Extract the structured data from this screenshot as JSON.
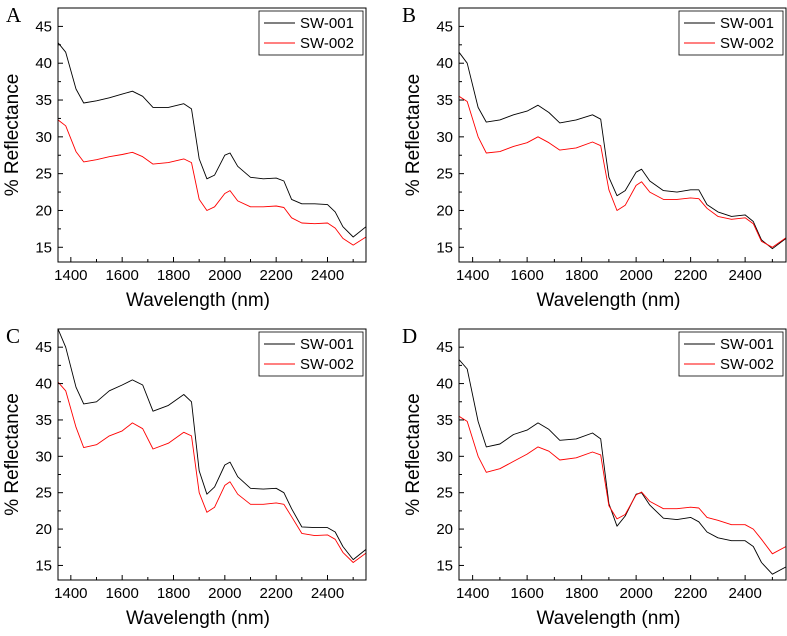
{
  "chart_data": [
    {
      "type": "line",
      "panel": "A",
      "xlabel": "Wavelength (nm)",
      "ylabel": "% Reflectance",
      "xlim": [
        1350,
        2550
      ],
      "ylim": [
        13,
        47.5
      ],
      "xticks": [
        1400,
        1600,
        1800,
        2000,
        2200,
        2400
      ],
      "yticks": [
        15,
        20,
        25,
        30,
        35,
        40,
        45
      ],
      "legend_position": "top-right",
      "x": [
        1350,
        1380,
        1420,
        1450,
        1500,
        1550,
        1600,
        1640,
        1680,
        1720,
        1780,
        1840,
        1870,
        1900,
        1930,
        1960,
        2000,
        2020,
        2050,
        2100,
        2150,
        2200,
        2230,
        2260,
        2300,
        2350,
        2400,
        2430,
        2460,
        2500,
        2550
      ],
      "series": [
        {
          "name": "SW-001",
          "color": "#000000",
          "values": [
            42.8,
            41.5,
            36.5,
            34.6,
            34.9,
            35.3,
            35.8,
            36.2,
            35.5,
            34.0,
            34.0,
            34.5,
            33.8,
            27.0,
            24.3,
            24.8,
            27.5,
            27.8,
            26.0,
            24.5,
            24.3,
            24.4,
            24.0,
            21.5,
            20.9,
            20.9,
            20.8,
            19.8,
            17.8,
            16.4,
            17.8
          ]
        },
        {
          "name": "SW-002",
          "color": "#ff0000",
          "values": [
            32.3,
            31.5,
            28.0,
            26.6,
            26.9,
            27.3,
            27.6,
            27.9,
            27.3,
            26.3,
            26.5,
            27.0,
            26.5,
            21.5,
            20.0,
            20.5,
            22.3,
            22.7,
            21.3,
            20.5,
            20.5,
            20.6,
            20.4,
            19.0,
            18.3,
            18.2,
            18.3,
            17.6,
            16.2,
            15.3,
            16.4
          ]
        }
      ]
    },
    {
      "type": "line",
      "panel": "B",
      "xlabel": "Wavelength (nm)",
      "ylabel": "% Reflectance",
      "xlim": [
        1350,
        2550
      ],
      "ylim": [
        13,
        47.5
      ],
      "xticks": [
        1400,
        1600,
        1800,
        2000,
        2200,
        2400
      ],
      "yticks": [
        15,
        20,
        25,
        30,
        35,
        40,
        45
      ],
      "legend_position": "top-right",
      "x": [
        1350,
        1380,
        1420,
        1450,
        1500,
        1550,
        1600,
        1640,
        1680,
        1720,
        1780,
        1840,
        1870,
        1900,
        1930,
        1960,
        2000,
        2020,
        2050,
        2100,
        2150,
        2200,
        2230,
        2260,
        2300,
        2350,
        2400,
        2430,
        2460,
        2500,
        2550
      ],
      "series": [
        {
          "name": "SW-001",
          "color": "#000000",
          "values": [
            41.5,
            40.0,
            34.0,
            32.0,
            32.3,
            33.0,
            33.5,
            34.3,
            33.3,
            31.9,
            32.3,
            33.0,
            32.4,
            24.5,
            22.0,
            22.7,
            25.2,
            25.6,
            24.0,
            22.7,
            22.5,
            22.8,
            22.8,
            20.8,
            19.8,
            19.2,
            19.4,
            18.5,
            16.0,
            14.8,
            16.2
          ]
        },
        {
          "name": "SW-002",
          "color": "#ff0000",
          "values": [
            35.5,
            34.8,
            30.0,
            27.8,
            28.0,
            28.7,
            29.2,
            30.0,
            29.2,
            28.2,
            28.5,
            29.3,
            28.8,
            22.8,
            20.0,
            20.7,
            23.4,
            23.9,
            22.5,
            21.5,
            21.5,
            21.7,
            21.6,
            20.3,
            19.2,
            18.8,
            19.0,
            18.2,
            15.8,
            15.0,
            16.3
          ]
        }
      ]
    },
    {
      "type": "line",
      "panel": "C",
      "xlabel": "Wavelength (nm)",
      "ylabel": "% Reflectance",
      "xlim": [
        1350,
        2550
      ],
      "ylim": [
        13,
        47.5
      ],
      "xticks": [
        1400,
        1600,
        1800,
        2000,
        2200,
        2400
      ],
      "yticks": [
        15,
        20,
        25,
        30,
        35,
        40,
        45
      ],
      "legend_position": "top-right",
      "x": [
        1350,
        1380,
        1420,
        1450,
        1500,
        1550,
        1600,
        1640,
        1680,
        1720,
        1780,
        1840,
        1870,
        1900,
        1930,
        1960,
        2000,
        2020,
        2050,
        2100,
        2150,
        2200,
        2230,
        2260,
        2300,
        2350,
        2400,
        2430,
        2460,
        2500,
        2550
      ],
      "series": [
        {
          "name": "SW-001",
          "color": "#000000",
          "values": [
            47.5,
            45.0,
            39.5,
            37.2,
            37.5,
            39.0,
            39.8,
            40.5,
            39.8,
            36.2,
            37.0,
            38.5,
            37.5,
            28.0,
            24.8,
            25.8,
            28.8,
            29.2,
            27.2,
            25.6,
            25.5,
            25.6,
            25.0,
            22.8,
            20.3,
            20.2,
            20.2,
            19.6,
            17.6,
            15.8,
            17.2
          ]
        },
        {
          "name": "SW-002",
          "color": "#ff0000",
          "values": [
            40.2,
            39.0,
            34.0,
            31.2,
            31.6,
            32.8,
            33.5,
            34.6,
            33.8,
            31.0,
            31.8,
            33.3,
            32.8,
            25.0,
            22.3,
            23.0,
            26.0,
            26.5,
            24.8,
            23.4,
            23.4,
            23.6,
            23.4,
            21.7,
            19.4,
            19.1,
            19.2,
            18.6,
            16.8,
            15.4,
            16.7
          ]
        }
      ]
    },
    {
      "type": "line",
      "panel": "D",
      "xlabel": "Wavelength (nm)",
      "ylabel": "% Reflectance",
      "xlim": [
        1350,
        2550
      ],
      "ylim": [
        13,
        47.5
      ],
      "xticks": [
        1400,
        1600,
        1800,
        2000,
        2200,
        2400
      ],
      "yticks": [
        15,
        20,
        25,
        30,
        35,
        40,
        45
      ],
      "legend_position": "top-right",
      "x": [
        1350,
        1380,
        1420,
        1450,
        1500,
        1550,
        1600,
        1640,
        1680,
        1720,
        1780,
        1840,
        1870,
        1900,
        1930,
        1960,
        2000,
        2020,
        2050,
        2100,
        2150,
        2200,
        2230,
        2260,
        2300,
        2350,
        2400,
        2430,
        2460,
        2500,
        2550
      ],
      "series": [
        {
          "name": "SW-001",
          "color": "#000000",
          "values": [
            43.3,
            42.0,
            34.8,
            31.3,
            31.7,
            33.0,
            33.6,
            34.6,
            33.7,
            32.2,
            32.4,
            33.2,
            32.4,
            23.5,
            20.4,
            21.8,
            24.8,
            25.0,
            23.3,
            21.5,
            21.3,
            21.6,
            21.0,
            19.6,
            18.8,
            18.4,
            18.4,
            17.6,
            15.4,
            13.8,
            14.8
          ]
        },
        {
          "name": "SW-002",
          "color": "#ff0000",
          "values": [
            35.5,
            34.8,
            30.0,
            27.8,
            28.3,
            29.3,
            30.3,
            31.3,
            30.7,
            29.5,
            29.8,
            30.6,
            30.2,
            23.2,
            21.4,
            22.0,
            24.7,
            25.1,
            23.8,
            22.8,
            22.8,
            23.0,
            22.9,
            21.6,
            21.2,
            20.6,
            20.6,
            20.0,
            18.6,
            16.6,
            17.6
          ]
        }
      ]
    }
  ]
}
